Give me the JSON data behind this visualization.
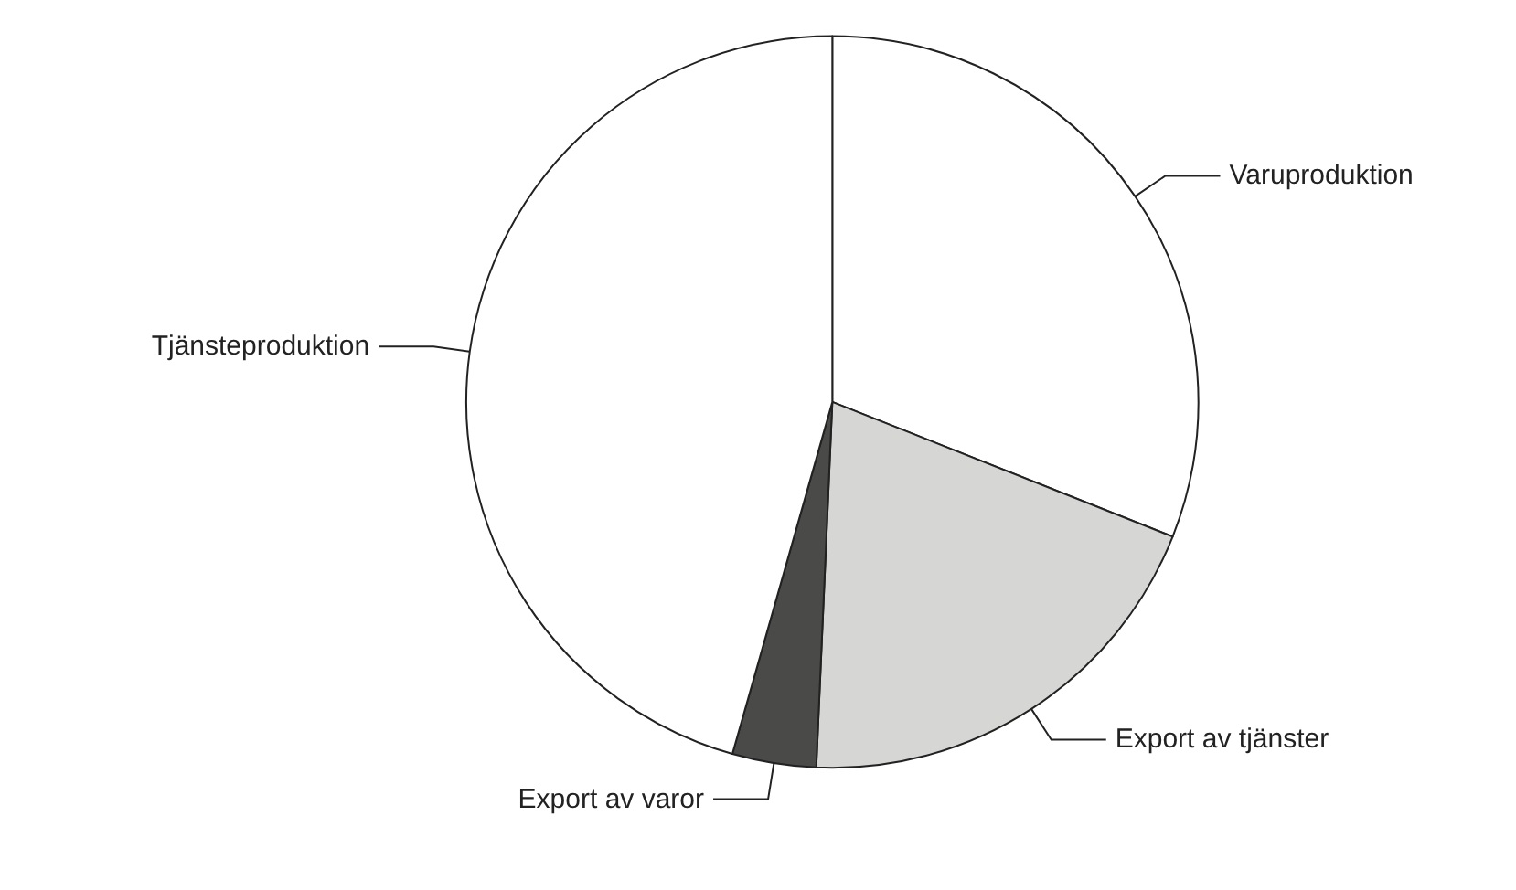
{
  "chart_data": {
    "type": "pie",
    "categories": [
      "Varuproduktion",
      "Export av tjänster",
      "Export av varor",
      "Tjänsteproduktion"
    ],
    "values": [
      31,
      19.7,
      3.7,
      45.6
    ],
    "colors": [
      "#ffffff",
      "#d6d6d4",
      "#4a4a48",
      "#ffffff"
    ]
  }
}
